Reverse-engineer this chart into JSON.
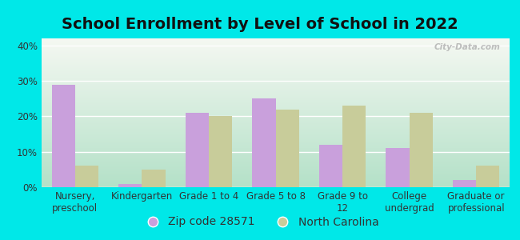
{
  "title": "School Enrollment by Level of School in 2022",
  "categories": [
    "Nursery,\npreschool",
    "Kindergarten",
    "Grade 1 to 4",
    "Grade 5 to 8",
    "Grade 9 to\n12",
    "College\nundergrad",
    "Graduate or\nprofessional"
  ],
  "zip_values": [
    29,
    1,
    21,
    25,
    12,
    11,
    2
  ],
  "nc_values": [
    6,
    5,
    20,
    22,
    23,
    21,
    6
  ],
  "zip_color": "#c9a0dc",
  "nc_color": "#c8cc9a",
  "background_outer": "#00e8e8",
  "background_inner_top": "#f5f5f0",
  "background_inner_bottom": "#c8eedd",
  "zip_label": "Zip code 28571",
  "nc_label": "North Carolina",
  "ylim": [
    0,
    42
  ],
  "yticks": [
    0,
    10,
    20,
    30,
    40
  ],
  "bar_width": 0.35,
  "title_fontsize": 14,
  "tick_fontsize": 8.5,
  "legend_fontsize": 10,
  "watermark": "City-Data.com"
}
